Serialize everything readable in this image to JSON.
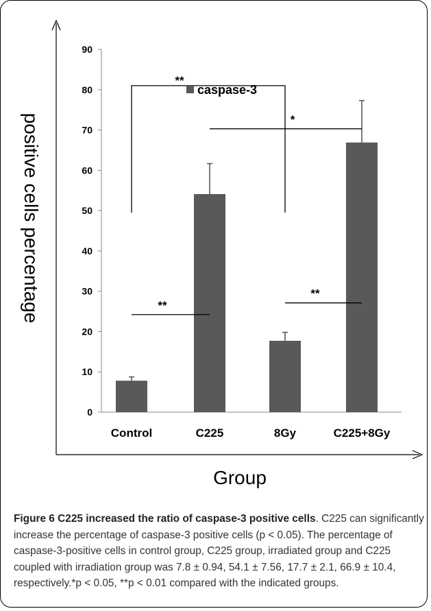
{
  "chart_data": {
    "type": "bar",
    "xlabel": "Group",
    "ylabel": "positive cells percentage",
    "ylim": [
      0,
      90
    ],
    "yticks": [
      0,
      10,
      20,
      30,
      40,
      50,
      60,
      70,
      80,
      90
    ],
    "categories": [
      "Control",
      "C225",
      "8Gy",
      "C225+8Gy"
    ],
    "series": [
      {
        "name": "caspase-3",
        "values": [
          7.8,
          54.1,
          17.7,
          66.9
        ],
        "errors": [
          0.94,
          7.56,
          2.1,
          10.4
        ]
      }
    ],
    "legend_position": "top-center",
    "grid": false,
    "bar_color": "#595959",
    "annotations": [
      {
        "type": "bracket",
        "from": "Control",
        "to": "8Gy",
        "y": 81,
        "drop_to": [
          49.5,
          49.5
        ],
        "label": "**"
      },
      {
        "type": "line",
        "from": "C225",
        "to": "C225+8Gy",
        "y": 70.3,
        "label": "*"
      },
      {
        "type": "line",
        "from": "Control",
        "to": "C225",
        "y": 24.2,
        "label": "**"
      },
      {
        "type": "line",
        "from": "8Gy",
        "to": "C225+8Gy",
        "y": 27.1,
        "label": "**"
      }
    ]
  },
  "caption": {
    "label": "Figure 6 C225 increased the ratio of caspase-3 positive cells",
    "text": ". C225 can significantly increase the percentage of caspase-3 positive cells (p < 0.05). The percentage of caspase-3-positive cells in control group, C225 group, irradiated group and C225 coupled with irradiation group was 7.8 ± 0.94, 54.1 ± 7.56, 17.7 ± 2.1, 66.9 ± 10.4, respectively.*p < 0.05, **p < 0.01 compared with the indicated groups."
  }
}
